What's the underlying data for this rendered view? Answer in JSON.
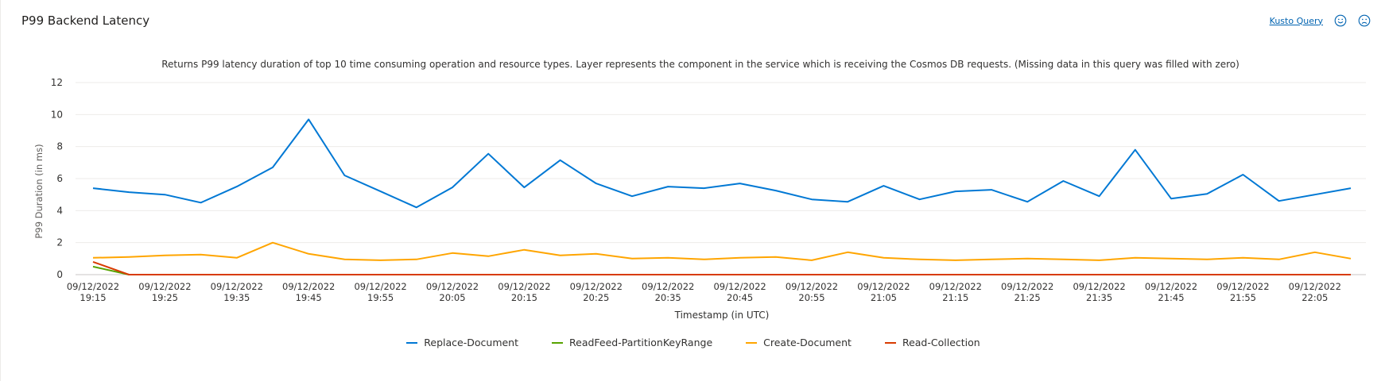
{
  "panel": {
    "title": "P99 Backend Latency",
    "kusto_link": "Kusto Query",
    "feedback": [
      {
        "icon": "smiley-icon"
      },
      {
        "icon": "frown-icon"
      }
    ]
  },
  "chart_data": {
    "type": "line",
    "title": "Returns P99 latency duration of top 10 time consuming operation and resource types. Layer represents the component in the service which is receiving the Cosmos DB requests. (Missing data in this query was filled with zero)",
    "xlabel": "Timestamp (in UTC)",
    "ylabel": "P99 Duration (in ms)",
    "ylim": [
      0,
      12
    ],
    "yticks": [
      0,
      2,
      4,
      6,
      8,
      10,
      12
    ],
    "grid": true,
    "legend_position": "bottom",
    "x": [
      "19:15",
      "19:20",
      "19:25",
      "19:30",
      "19:35",
      "19:40",
      "19:45",
      "19:50",
      "19:55",
      "20:00",
      "20:05",
      "20:10",
      "20:15",
      "20:20",
      "20:25",
      "20:30",
      "20:35",
      "20:40",
      "20:45",
      "20:50",
      "20:55",
      "21:00",
      "21:05",
      "21:10",
      "21:15",
      "21:20",
      "21:25",
      "21:30",
      "21:35",
      "21:40",
      "21:45",
      "21:50",
      "21:55",
      "22:00",
      "22:05",
      "22:10"
    ],
    "xticks": [
      {
        "date": "09/12/2022",
        "time": "19:15"
      },
      {
        "date": "09/12/2022",
        "time": "19:25"
      },
      {
        "date": "09/12/2022",
        "time": "19:35"
      },
      {
        "date": "09/12/2022",
        "time": "19:45"
      },
      {
        "date": "09/12/2022",
        "time": "19:55"
      },
      {
        "date": "09/12/2022",
        "time": "20:05"
      },
      {
        "date": "09/12/2022",
        "time": "20:15"
      },
      {
        "date": "09/12/2022",
        "time": "20:25"
      },
      {
        "date": "09/12/2022",
        "time": "20:35"
      },
      {
        "date": "09/12/2022",
        "time": "20:45"
      },
      {
        "date": "09/12/2022",
        "time": "20:55"
      },
      {
        "date": "09/12/2022",
        "time": "21:05"
      },
      {
        "date": "09/12/2022",
        "time": "21:15"
      },
      {
        "date": "09/12/2022",
        "time": "21:25"
      },
      {
        "date": "09/12/2022",
        "time": "21:35"
      },
      {
        "date": "09/12/2022",
        "time": "21:45"
      },
      {
        "date": "09/12/2022",
        "time": "21:55"
      },
      {
        "date": "09/12/2022",
        "time": "22:05"
      }
    ],
    "series": [
      {
        "name": "Replace-Document",
        "color": "#0078d4",
        "values": [
          5.4,
          5.15,
          5.0,
          4.5,
          5.5,
          6.7,
          9.7,
          6.2,
          5.2,
          4.2,
          5.45,
          7.55,
          5.45,
          7.15,
          5.7,
          4.9,
          5.5,
          5.4,
          5.7,
          5.25,
          4.7,
          4.55,
          5.55,
          4.7,
          5.2,
          5.3,
          4.55,
          5.85,
          4.9,
          7.8,
          4.75,
          5.05,
          6.25,
          4.6,
          5.0,
          5.4
        ]
      },
      {
        "name": "ReadFeed-PartitionKeyRange",
        "color": "#57a300",
        "values": [
          0.5,
          0,
          0,
          0,
          0,
          0,
          0,
          0,
          0,
          0,
          0,
          0,
          0,
          0,
          0,
          0,
          0,
          0,
          0,
          0,
          0,
          0,
          0,
          0,
          0,
          0,
          0,
          0,
          0,
          0,
          0,
          0,
          0,
          0,
          0,
          0
        ]
      },
      {
        "name": "Create-Document",
        "color": "#ffa500",
        "values": [
          1.05,
          1.1,
          1.2,
          1.25,
          1.05,
          2.0,
          1.3,
          0.95,
          0.9,
          0.95,
          1.35,
          1.15,
          1.55,
          1.2,
          1.3,
          1.0,
          1.05,
          0.95,
          1.05,
          1.1,
          0.9,
          1.4,
          1.05,
          0.95,
          0.9,
          0.95,
          1.0,
          0.95,
          0.9,
          1.05,
          1.0,
          0.95,
          1.05,
          0.95,
          1.4,
          1.0
        ]
      },
      {
        "name": "Read-Collection",
        "color": "#d83b01",
        "values": [
          0.8,
          0,
          0,
          0,
          0,
          0,
          0,
          0,
          0,
          0,
          0,
          0,
          0,
          0,
          0,
          0,
          0,
          0,
          0,
          0,
          0,
          0,
          0,
          0,
          0,
          0,
          0,
          0,
          0,
          0,
          0,
          0,
          0,
          0,
          0,
          0
        ]
      }
    ]
  }
}
